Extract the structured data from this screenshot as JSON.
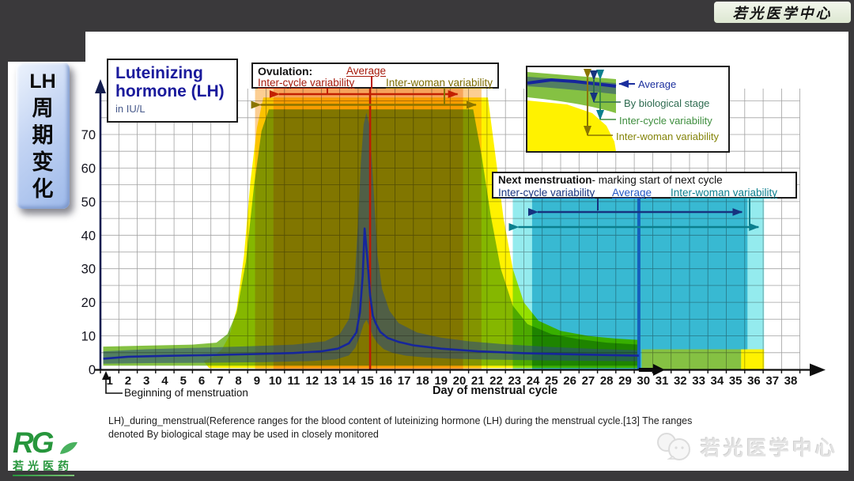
{
  "window": {
    "top_watermark": "若光医学中心"
  },
  "sidebar": {
    "lines": [
      "LH",
      "周",
      "期",
      "变",
      "化"
    ]
  },
  "boxes": {
    "lh": {
      "line1": "Luteinizing",
      "line2": "hormone (LH)",
      "unit": "in IU/L"
    },
    "ovulation": {
      "title": "Ovulation:",
      "average": "Average",
      "inter_cycle": "Inter-cycle variability",
      "inter_woman": "Inter-woman variability"
    },
    "legend": {
      "average": "Average",
      "by_stage": "By biological stage",
      "inter_cycle": "Inter-cycle variability",
      "inter_woman": "Inter-woman variability"
    },
    "next": {
      "title": "Next menstruation",
      "subtitle": "- marking start of next cycle",
      "inter_cycle": "Inter-cycle variability",
      "average": "Average",
      "inter_woman": "Inter-woman variability"
    }
  },
  "axis": {
    "x_label": "Day of menstrual cycle",
    "beginning_label": "Beginning of menstruation"
  },
  "caption": {
    "line1": "LH)_during_menstrual(Reference ranges for the blood content of luteinizing hormone (LH) during the menstrual cycle.[13] The ranges",
    "line2": "denoted By biological stage may be used in closely monitored"
  },
  "footer": {
    "logo_text": "RG",
    "logo_sub": "若光医药",
    "watermark": "若光医学中心"
  },
  "colors": {
    "inter_woman_yellow": "#fff200",
    "inter_cycle_green": "#85c143",
    "by_stage_band": "rgba(45,80,120,0.58)",
    "average_line": "#16269c",
    "ovulation_outer": "#fcce92",
    "ovulation_inner": "#f7a45c",
    "nextmens_outer": "#94ebee",
    "nextmens_inner": "#38b9d2",
    "ovulation_average_line": "#bb1c04",
    "nextmens_average_line": "#1560bd",
    "arrow_red": "#c22000",
    "arrow_olive": "#8a7500",
    "arrow_navy": "#16337f",
    "arrow_teal": "#0b7f8e"
  },
  "chart_data": {
    "type": "area",
    "title": "Luteinizing hormone (LH) in IU/L",
    "xlabel": "Day of menstrual cycle",
    "ylabel": "LH (IU/L)",
    "xlim": [
      0,
      38
    ],
    "ylim": [
      0,
      83.5
    ],
    "x_ticks_start": 1,
    "x_ticks_end": 38,
    "y_ticks": [
      0,
      10,
      20,
      30,
      40,
      50,
      60,
      70
    ],
    "grid_step": {
      "x": 1,
      "y": 5
    },
    "legend_position": "top-right",
    "series": [
      {
        "name": "Average",
        "points": [
          [
            0.15,
            3.2
          ],
          [
            1.5,
            3.8
          ],
          [
            3.5,
            4.05
          ],
          [
            6,
            4.3
          ],
          [
            8.5,
            4.6
          ],
          [
            10.5,
            4.9
          ],
          [
            12,
            5.4
          ],
          [
            12.9,
            6.2
          ],
          [
            13.5,
            7.8
          ],
          [
            13.9,
            11
          ],
          [
            14.1,
            17
          ],
          [
            14.25,
            28
          ],
          [
            14.35,
            42
          ],
          [
            14.5,
            33
          ],
          [
            14.65,
            22
          ],
          [
            14.8,
            16
          ],
          [
            14.95,
            13.8
          ],
          [
            15.2,
            11.2
          ],
          [
            15.6,
            9.4
          ],
          [
            16.2,
            8.2
          ],
          [
            17,
            7.2
          ],
          [
            18.5,
            6.2
          ],
          [
            20.5,
            5.4
          ],
          [
            23,
            4.85
          ],
          [
            26,
            4.45
          ],
          [
            29.25,
            4.1
          ]
        ]
      },
      {
        "name": "By biological stage",
        "upper": [
          [
            0.15,
            5.4
          ],
          [
            2.5,
            6
          ],
          [
            5,
            6.4
          ],
          [
            8,
            6.9
          ],
          [
            10.5,
            7.4
          ],
          [
            12.2,
            8.4
          ],
          [
            13,
            10.5
          ],
          [
            13.5,
            15
          ],
          [
            13.8,
            26
          ],
          [
            14,
            44
          ],
          [
            14.15,
            62
          ],
          [
            14.3,
            73
          ],
          [
            14.45,
            76.5
          ],
          [
            14.6,
            73
          ],
          [
            14.75,
            62
          ],
          [
            14.9,
            48
          ],
          [
            15.05,
            34
          ],
          [
            15.3,
            24
          ],
          [
            15.7,
            17.5
          ],
          [
            16.2,
            13.8
          ],
          [
            17.2,
            11
          ],
          [
            18.5,
            9.5
          ],
          [
            20,
            8.4
          ],
          [
            22,
            7.5
          ],
          [
            24.5,
            6.7
          ],
          [
            27,
            6.1
          ],
          [
            29.25,
            5.7
          ]
        ],
        "lower": [
          [
            0.15,
            1.7
          ],
          [
            3,
            1.9
          ],
          [
            6,
            2
          ],
          [
            9,
            2.2
          ],
          [
            11.5,
            2.5
          ],
          [
            12.8,
            3
          ],
          [
            13.5,
            4.2
          ],
          [
            13.85,
            6.5
          ],
          [
            14.1,
            10
          ],
          [
            14.3,
            13.5
          ],
          [
            14.45,
            14.8
          ],
          [
            14.6,
            13
          ],
          [
            14.8,
            10
          ],
          [
            15.05,
            7.8
          ],
          [
            15.4,
            6
          ],
          [
            15.9,
            4.9
          ],
          [
            16.6,
            4.1
          ],
          [
            17.6,
            3.6
          ],
          [
            19,
            3.2
          ],
          [
            21,
            2.95
          ],
          [
            24,
            2.7
          ],
          [
            27,
            2.55
          ],
          [
            29.25,
            2.45
          ]
        ]
      },
      {
        "name": "Inter-cycle variability",
        "upper": [
          [
            0.15,
            6.8
          ],
          [
            2.5,
            7.1
          ],
          [
            5,
            7.4
          ],
          [
            6.3,
            8
          ],
          [
            6.9,
            10.5
          ],
          [
            7.4,
            17
          ],
          [
            7.9,
            32
          ],
          [
            8.35,
            55
          ],
          [
            8.75,
            71
          ],
          [
            9.15,
            77.5
          ],
          [
            20.25,
            77.5
          ],
          [
            20.7,
            64
          ],
          [
            21.2,
            46
          ],
          [
            21.75,
            30
          ],
          [
            22.4,
            19
          ],
          [
            23.2,
            13.5
          ],
          [
            24.5,
            10.5
          ],
          [
            26,
            9
          ],
          [
            27.5,
            8
          ],
          [
            29.25,
            7.4
          ]
        ],
        "lower": [
          [
            0.15,
            1.1
          ],
          [
            29.25,
            1.1
          ]
        ]
      },
      {
        "name": "Inter-woman variability",
        "upper": [
          [
            5.6,
            2.5
          ],
          [
            6.1,
            3.6
          ],
          [
            6.6,
            6
          ],
          [
            7,
            10
          ],
          [
            7.4,
            18
          ],
          [
            7.8,
            34
          ],
          [
            8.15,
            56
          ],
          [
            8.5,
            72
          ],
          [
            8.85,
            81
          ],
          [
            21.05,
            81
          ],
          [
            21.45,
            64
          ],
          [
            21.9,
            45
          ],
          [
            22.4,
            30
          ],
          [
            23,
            20
          ],
          [
            23.8,
            14.5
          ],
          [
            25,
            11.5
          ],
          [
            26.5,
            10
          ],
          [
            28,
            9.2
          ],
          [
            29.25,
            8.8
          ]
        ],
        "lower": [
          [
            5.9,
            0.4
          ],
          [
            29.25,
            0.4
          ]
        ]
      }
    ],
    "ovulation": {
      "average_day": 14.65,
      "inter_cycle_days": [
        9.4,
        19.7
      ],
      "inter_woman_days": [
        8.4,
        20.7
      ]
    },
    "next_menstruation": {
      "average_day": 29.25,
      "inter_cycle_days": [
        23.45,
        35.15
      ],
      "inter_woman_days": [
        22.4,
        36.05
      ]
    },
    "next_cycle_lh": {
      "green_days": [
        29.4,
        34.8
      ],
      "yellow_days": [
        34.8,
        36.05
      ],
      "top_value": 6
    }
  }
}
